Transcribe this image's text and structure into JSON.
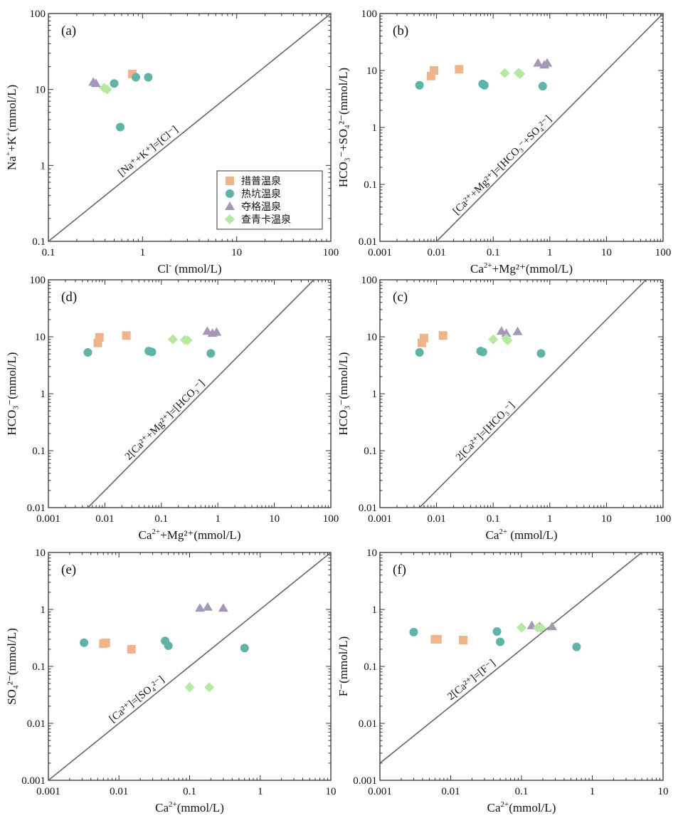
{
  "legend": [
    {
      "name": "措普温泉",
      "marker": "square",
      "color": "#f0b48c"
    },
    {
      "name": "热坑温泉",
      "marker": "circle",
      "color": "#5fb3a8"
    },
    {
      "name": "夺格温泉",
      "marker": "triangle",
      "color": "#a498b6"
    },
    {
      "name": "查青卡温泉",
      "marker": "diamond",
      "color": "#b5e8a0"
    }
  ],
  "chart_data": [
    {
      "id": "a",
      "panel_label": "(a)",
      "type": "scatter",
      "log_scale": true,
      "xlim": [
        0.1,
        100
      ],
      "ylim": [
        0.1,
        100
      ],
      "x_ticks": [
        "0.1",
        "1",
        "10",
        "100"
      ],
      "y_ticks": [
        "0.1",
        "1",
        "10",
        "100"
      ],
      "xlabel_main": "Cl",
      "xlabel_sup": "-",
      "xlabel_rest": " (mmol/L)",
      "ylabel_main": "Na",
      "ylabel_sup1": "+",
      "ylabel_mid": "+K",
      "ylabel_sup2": "+",
      "ylabel_rest": "(mmol/L)",
      "ref_line": {
        "slope": 1,
        "factor": 1,
        "label": "[Na⁺+K⁺]=[Cl⁻]"
      },
      "series": [
        {
          "name": "措普温泉",
          "points": [
            [
              0.78,
              16
            ]
          ]
        },
        {
          "name": "热坑温泉",
          "points": [
            [
              0.5,
              12
            ],
            [
              0.85,
              14.5
            ],
            [
              1.15,
              14.5
            ],
            [
              0.58,
              3.2
            ]
          ]
        },
        {
          "name": "夺格温泉",
          "points": [
            [
              0.3,
              12.5
            ],
            [
              0.32,
              12
            ]
          ]
        },
        {
          "name": "查青卡温泉",
          "points": [
            [
              0.39,
              10.5
            ],
            [
              0.42,
              10
            ]
          ]
        }
      ]
    },
    {
      "id": "b",
      "panel_label": "(b)",
      "type": "scatter",
      "log_scale": true,
      "xlim": [
        0.001,
        100
      ],
      "ylim": [
        0.01,
        100
      ],
      "x_ticks": [
        "0.001",
        "0.01",
        "0.1",
        "1",
        "10",
        "100"
      ],
      "y_ticks": [
        "0.01",
        "0.1",
        "1",
        "10",
        "100"
      ],
      "xlabel_main": "Ca",
      "xlabel_sup": "2+",
      "xlabel_rest": "+Mg²⁺(mmol/L)",
      "ylabel_text": "HCO₃⁻+SO₄²⁻(mmol/L)",
      "ref_line": {
        "slope": 1,
        "factor": 1,
        "label": "[Ca²⁺+Mg²⁺]=[HCO₃⁻+SO₄²⁻]"
      },
      "series": [
        {
          "name": "措普温泉",
          "points": [
            [
              0.008,
              8
            ],
            [
              0.009,
              10
            ],
            [
              0.025,
              10.5
            ]
          ]
        },
        {
          "name": "热坑温泉",
          "points": [
            [
              0.005,
              5.5
            ],
            [
              0.065,
              5.8
            ],
            [
              0.07,
              5.5
            ],
            [
              0.75,
              5.3
            ]
          ]
        },
        {
          "name": "夺格温泉",
          "points": [
            [
              0.62,
              13.5
            ],
            [
              0.8,
              12.5
            ],
            [
              0.9,
              13.5
            ]
          ]
        },
        {
          "name": "查青卡温泉",
          "points": [
            [
              0.16,
              9
            ],
            [
              0.28,
              9
            ],
            [
              0.3,
              8.7
            ]
          ]
        }
      ]
    },
    {
      "id": "d",
      "panel_label": "(d)",
      "type": "scatter",
      "log_scale": true,
      "xlim": [
        0.001,
        100
      ],
      "ylim": [
        0.01,
        100
      ],
      "x_ticks": [
        "0.001",
        "0.01",
        "0.1",
        "1",
        "10",
        "100"
      ],
      "y_ticks": [
        "0.01",
        "0.1",
        "1",
        "10",
        "100"
      ],
      "xlabel_main": "Ca",
      "xlabel_sup": "2+",
      "xlabel_rest": "+Mg²⁺(mmol/L)",
      "ylabel_text": "HCO₃⁻(mmol/L)",
      "ref_line": {
        "slope": 1,
        "factor": 2,
        "label": "2[Ca²⁺+Mg²⁺]=[HCO₃⁻]"
      },
      "series": [
        {
          "name": "措普温泉",
          "points": [
            [
              0.0075,
              7.8
            ],
            [
              0.008,
              9.8
            ],
            [
              0.024,
              10.5
            ]
          ]
        },
        {
          "name": "热坑温泉",
          "points": [
            [
              0.005,
              5.3
            ],
            [
              0.06,
              5.6
            ],
            [
              0.068,
              5.4
            ],
            [
              0.75,
              5.1
            ]
          ]
        },
        {
          "name": "夺格温泉",
          "points": [
            [
              0.65,
              12.5
            ],
            [
              0.8,
              11.5
            ],
            [
              0.95,
              12
            ]
          ]
        },
        {
          "name": "查青卡温泉",
          "points": [
            [
              0.16,
              9
            ],
            [
              0.26,
              8.8
            ],
            [
              0.29,
              8.7
            ]
          ]
        }
      ]
    },
    {
      "id": "c",
      "panel_label": "(c)",
      "type": "scatter",
      "log_scale": true,
      "xlim": [
        0.001,
        100
      ],
      "ylim": [
        0.01,
        100
      ],
      "x_ticks": [
        "0.001",
        "0.01",
        "0.1",
        "1",
        "10",
        "100"
      ],
      "y_ticks": [
        "0.01",
        "0.1",
        "1",
        "10",
        "100"
      ],
      "xlabel_main": "Ca",
      "xlabel_sup": "2+",
      "xlabel_rest": " (mmol/L)",
      "ylabel_text": "HCO₃⁻(mmol/L)",
      "ref_line": {
        "slope": 1,
        "factor": 2,
        "label": "2[Ca²⁺]=[HCO₃⁻]"
      },
      "series": [
        {
          "name": "措普温泉",
          "points": [
            [
              0.0055,
              7.8
            ],
            [
              0.006,
              9.5
            ],
            [
              0.013,
              10.5
            ]
          ]
        },
        {
          "name": "热坑温泉",
          "points": [
            [
              0.005,
              5.3
            ],
            [
              0.06,
              5.6
            ],
            [
              0.066,
              5.4
            ],
            [
              0.7,
              5.1
            ]
          ]
        },
        {
          "name": "夺格温泉",
          "points": [
            [
              0.14,
              12.5
            ],
            [
              0.17,
              11.5
            ],
            [
              0.27,
              12.3
            ]
          ]
        },
        {
          "name": "查青卡温泉",
          "points": [
            [
              0.1,
              9
            ],
            [
              0.17,
              9.3
            ],
            [
              0.18,
              8.6
            ]
          ]
        }
      ]
    },
    {
      "id": "e",
      "panel_label": "(e)",
      "type": "scatter",
      "log_scale": true,
      "xlim": [
        0.001,
        10
      ],
      "ylim": [
        0.001,
        10
      ],
      "x_ticks": [
        "0.001",
        "0.01",
        "0.1",
        "1",
        "10"
      ],
      "y_ticks": [
        "0.001",
        "0.01",
        "0.1",
        "1",
        "10"
      ],
      "xlabel_main": "Ca",
      "xlabel_sup": "2+",
      "xlabel_rest": "(mmol/L)",
      "ylabel_text": "SO₄²⁻(mmol/L)",
      "ref_line": {
        "slope": 1,
        "factor": 1,
        "label": "[Ca²⁺]=[SO₄²⁻]"
      },
      "series": [
        {
          "name": "措普温泉",
          "points": [
            [
              0.006,
              0.25
            ],
            [
              0.0065,
              0.26
            ],
            [
              0.015,
              0.2
            ]
          ]
        },
        {
          "name": "热坑温泉",
          "points": [
            [
              0.0032,
              0.26
            ],
            [
              0.045,
              0.28
            ],
            [
              0.05,
              0.23
            ],
            [
              0.6,
              0.21
            ]
          ]
        },
        {
          "name": "夺格温泉",
          "points": [
            [
              0.14,
              1.05
            ],
            [
              0.18,
              1.1
            ],
            [
              0.3,
              1.05
            ]
          ]
        },
        {
          "name": "查青卡温泉",
          "points": [
            [
              0.1,
              0.043
            ],
            [
              0.19,
              0.043
            ]
          ]
        }
      ]
    },
    {
      "id": "f",
      "panel_label": "(f)",
      "type": "scatter",
      "log_scale": true,
      "xlim": [
        0.001,
        10
      ],
      "ylim": [
        0.001,
        10
      ],
      "x_ticks": [
        "0.001",
        "0.01",
        "0.1",
        "1",
        "10"
      ],
      "y_ticks": [
        "0.001",
        "0.01",
        "0.1",
        "1",
        "10"
      ],
      "xlabel_main": "Ca",
      "xlabel_sup": "2+",
      "xlabel_rest": "(mmol/L)",
      "ylabel_text": "F⁻(mmol/L)",
      "ref_line": {
        "slope": 1,
        "factor": 2,
        "label": "2[Ca²⁺]=[F⁻]"
      },
      "series": [
        {
          "name": "措普温泉",
          "points": [
            [
              0.006,
              0.3
            ],
            [
              0.0065,
              0.3
            ],
            [
              0.015,
              0.29
            ]
          ]
        },
        {
          "name": "热坑温泉",
          "points": [
            [
              0.003,
              0.4
            ],
            [
              0.045,
              0.41
            ],
            [
              0.05,
              0.27
            ],
            [
              0.6,
              0.22
            ]
          ]
        },
        {
          "name": "夺格温泉",
          "points": [
            [
              0.14,
              0.52
            ],
            [
              0.18,
              0.5
            ],
            [
              0.27,
              0.5
            ]
          ]
        },
        {
          "name": "查青卡温泉",
          "points": [
            [
              0.1,
              0.48
            ],
            [
              0.17,
              0.48
            ],
            [
              0.19,
              0.47
            ]
          ]
        }
      ]
    }
  ]
}
